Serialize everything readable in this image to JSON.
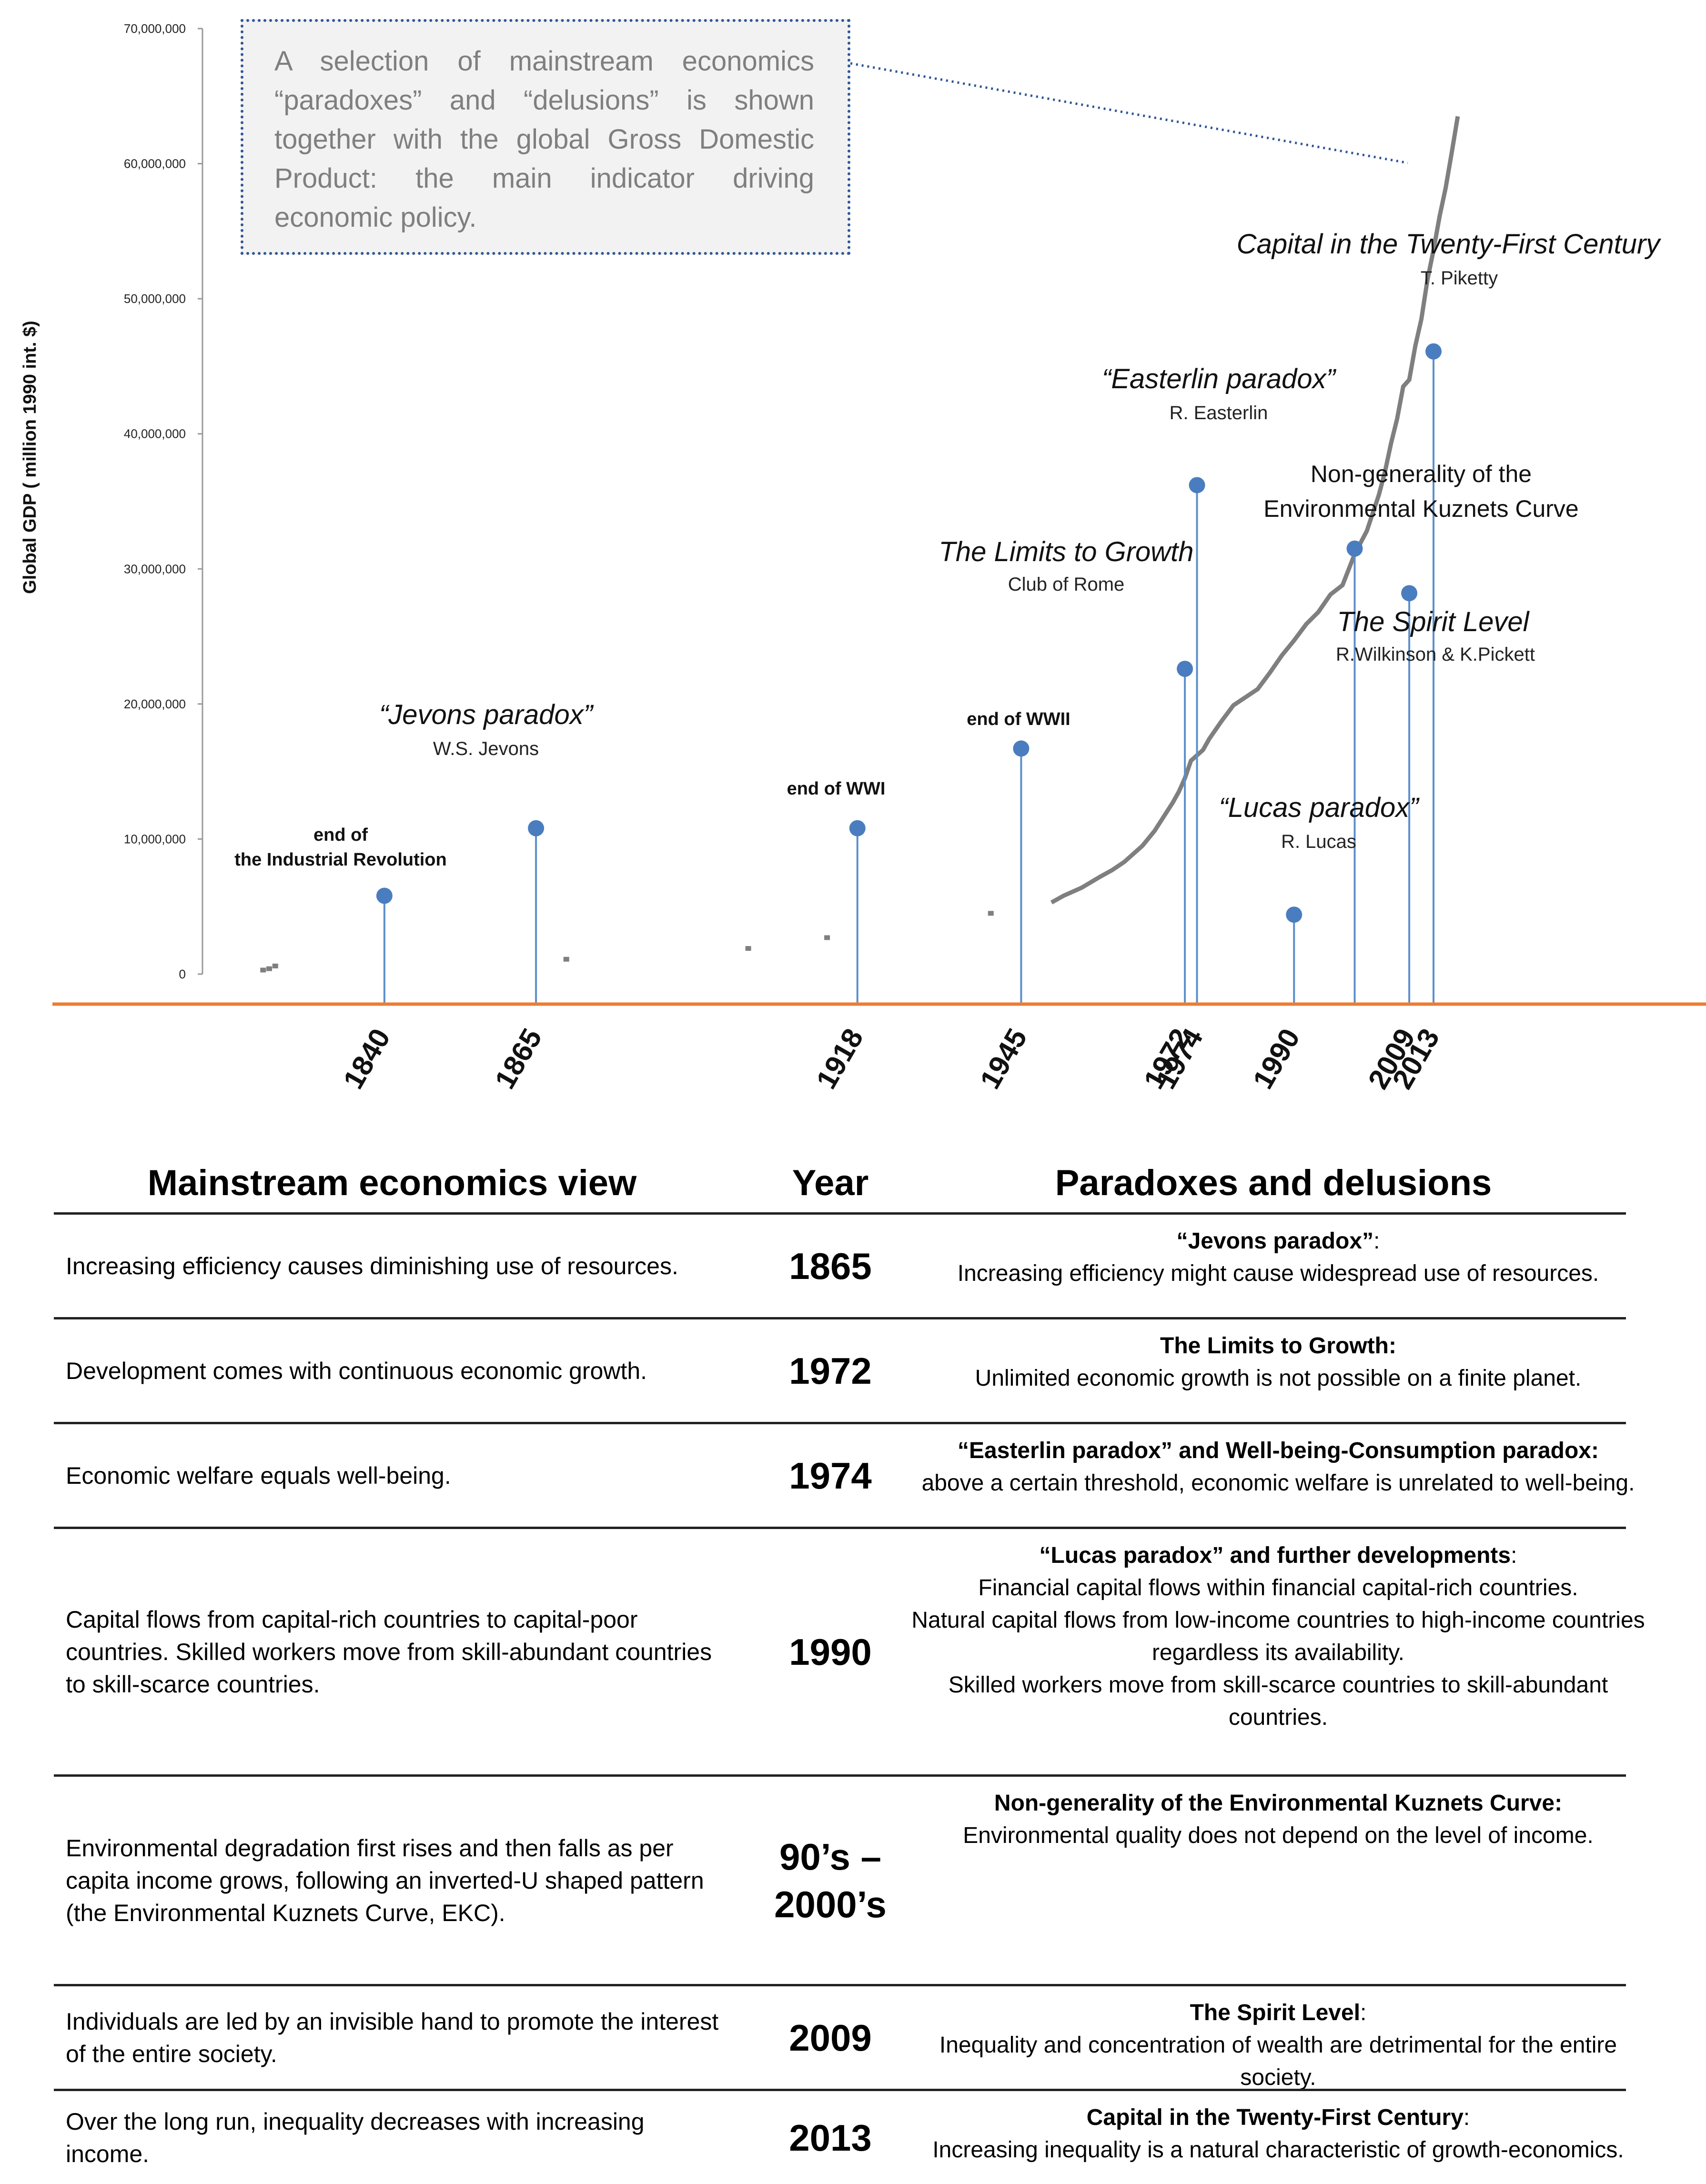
{
  "info_box": {
    "text": "A selection of mainstream economics “paradoxes” and “delusions” is shown together with the global Gross Domestic Product: the main indicator driving economic policy."
  },
  "chart_data": {
    "type": "line+stem",
    "ylabel": "Global GDP ( million 1990 int. $)",
    "ylim": [
      0,
      70000000
    ],
    "yticks": [
      0,
      10000000,
      20000000,
      30000000,
      40000000,
      50000000,
      60000000,
      70000000
    ],
    "ytick_labels": [
      "0",
      "10,000,000",
      "20,000,000",
      "30,000,000",
      "40,000,000",
      "50,000,000",
      "60,000,000",
      "70,000,000"
    ],
    "xlim": [
      1810,
      2050
    ],
    "x_tick_labels": [
      "1840",
      "1865",
      "1918",
      "1945",
      "1972",
      "1974",
      "1990",
      "2009",
      "2013"
    ],
    "x_tick_years": [
      1840,
      1865,
      1918,
      1945,
      1972,
      1974,
      1990,
      2009,
      2013
    ],
    "gdp_series": {
      "name": "Global GDP",
      "scattered": [
        [
          1820,
          300000
        ],
        [
          1821,
          400000
        ],
        [
          1822,
          600000
        ],
        [
          1870,
          1100000
        ],
        [
          1900,
          1900000
        ],
        [
          1913,
          2700000
        ],
        [
          1940,
          4500000
        ]
      ],
      "x": [
        1950,
        1952,
        1955,
        1958,
        1960,
        1962,
        1965,
        1967,
        1970,
        1971,
        1972,
        1973,
        1974,
        1975,
        1976,
        1978,
        1980,
        1982,
        1984,
        1986,
        1988,
        1990,
        1992,
        1994,
        1996,
        1998,
        2000,
        2002,
        2004,
        2005,
        2006,
        2007,
        2008,
        2009,
        2010,
        2011,
        2012,
        2013,
        2014,
        2015,
        2016,
        2017
      ],
      "y": [
        5300000,
        5800000,
        6400000,
        7200000,
        7700000,
        8300000,
        9500000,
        10600000,
        12700000,
        13500000,
        14500000,
        15800000,
        16200000,
        16600000,
        17400000,
        18700000,
        19900000,
        20500000,
        21100000,
        22300000,
        23600000,
        24700000,
        25900000,
        26800000,
        28100000,
        28800000,
        31100000,
        32800000,
        35500000,
        37200000,
        39300000,
        41100000,
        43500000,
        44000000,
        46500000,
        48500000,
        51400000,
        53600000,
        56100000,
        58200000,
        60800000,
        63500000
      ]
    },
    "events": [
      {
        "year": 1840,
        "marker": 5800000,
        "title": "end of\nthe Industrial Revolution",
        "author": ""
      },
      {
        "year": 1865,
        "marker": 10800000,
        "title": "“Jevons paradox”",
        "author": "W.S. Jevons"
      },
      {
        "year": 1918,
        "marker": 10800000,
        "title": "end of WWI",
        "author": ""
      },
      {
        "year": 1945,
        "marker": 16700000,
        "title": "end of WWII",
        "author": ""
      },
      {
        "year": 1972,
        "marker": 22600000,
        "title": "The Limits to Growth",
        "author": "Club of Rome"
      },
      {
        "year": 1974,
        "marker": 36200000,
        "title": "“Easterlin paradox”",
        "author": "R. Easterlin"
      },
      {
        "year": 1990,
        "marker": 4400000,
        "title": "“Lucas paradox”",
        "author": "R. Lucas"
      },
      {
        "year": 2000,
        "marker": 31500000,
        "title": "Non-generality of the\nEnvironmental Kuznets Curve",
        "author": ""
      },
      {
        "year": 2009,
        "marker": 28200000,
        "title": "The Spirit Level",
        "author": "R.Wilkinson & K.Pickett"
      },
      {
        "year": 2013,
        "marker": 46100000,
        "title": "Capital in the Twenty-First Century",
        "author": "T. Piketty"
      }
    ],
    "colors": {
      "baseline": "#ed7d31",
      "stem": "#5b8fcb",
      "marker": "#4a7dbf",
      "gdp": "#7f7f7f"
    }
  },
  "table": {
    "headers": [
      "Mainstream economics view",
      "Year",
      "Paradoxes and delusions"
    ],
    "rows": [
      {
        "view": "Increasing efficiency causes diminishing use of resources.",
        "year": "1865",
        "par_title": "“Jevons paradox”",
        "par_title_suffix": ":",
        "par_body": "Increasing efficiency might cause widespread use of resources."
      },
      {
        "view": "Development comes with continuous economic growth.",
        "year": "1972",
        "par_title": "The Limits to Growth:",
        "par_title_suffix": "",
        "par_body": "Unlimited economic growth is not possible on a finite planet."
      },
      {
        "view": "Economic welfare equals well-being.",
        "year": "1974",
        "par_title": "“Easterlin paradox” and Well-being-Consumption paradox:",
        "par_title_suffix": "",
        "par_body": "above a certain threshold, economic welfare is unrelated to well-being."
      },
      {
        "view": "Capital flows from capital-rich countries to capital-poor countries. Skilled workers move from skill-abundant countries to skill-scarce countries.",
        "year": "1990",
        "par_title": "“Lucas paradox” and further developments",
        "par_title_suffix": ":",
        "par_body": "Financial capital flows within financial capital-rich countries.\nNatural capital flows from low-income countries to high-income countries regardless its availability.\nSkilled workers move from skill-scarce countries to skill-abundant countries."
      },
      {
        "view": "Environmental degradation first rises and then falls as per capita income grows, following an inverted-U shaped pattern (the Environmental Kuznets Curve, EKC).",
        "year": "90’s –\n2000’s",
        "par_title": "Non-generality of the Environmental Kuznets Curve:",
        "par_title_suffix": "",
        "par_body": "Environmental quality does not depend on the level of income."
      },
      {
        "view": "Individuals are led by an invisible hand to promote the interest of the entire society.",
        "year": "2009",
        "par_title": "The Spirit Level",
        "par_title_suffix": ":",
        "par_body": "Inequality and concentration of wealth are detrimental for the entire society."
      },
      {
        "view": "Over the long run, inequality decreases with increasing income.",
        "year": "2013",
        "par_title": "Capital in the Twenty-First Century",
        "par_title_suffix": ":",
        "par_body": "Increasing inequality is a natural characteristic of growth-economics."
      }
    ]
  }
}
